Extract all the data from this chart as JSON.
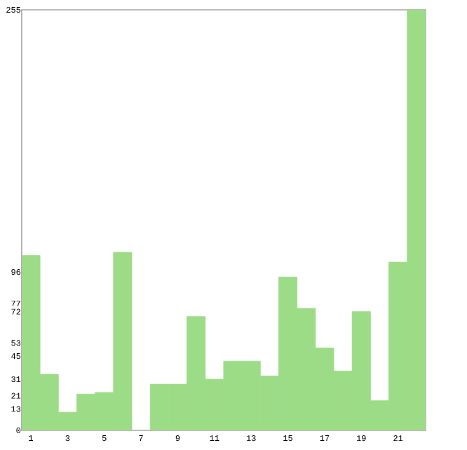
{
  "chart_data": {
    "type": "bar",
    "categories": [
      "1",
      null,
      "3",
      null,
      "5",
      null,
      "7",
      null,
      "9",
      null,
      "11",
      null,
      "13",
      null,
      "15",
      null,
      "17",
      null,
      "19",
      null,
      "21",
      null
    ],
    "values": [
      106,
      34,
      11,
      22,
      23,
      108,
      0,
      28,
      28,
      69,
      31,
      42,
      42,
      33,
      93,
      74,
      50,
      36,
      72,
      18,
      102,
      255
    ],
    "color": "#9ddc87",
    "ylim": [
      0,
      255
    ],
    "yticks": [
      0,
      13,
      21,
      31,
      45,
      53,
      72,
      77,
      96,
      255
    ],
    "grid": false
  }
}
